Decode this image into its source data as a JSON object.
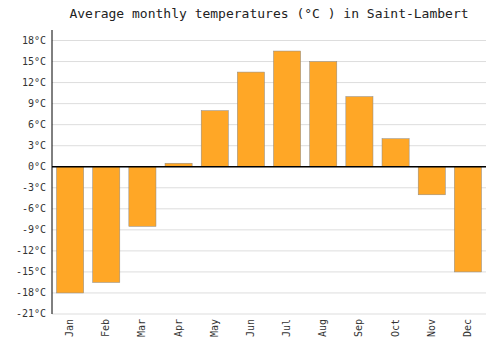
{
  "chart_data": {
    "type": "bar",
    "title": "Average monthly temperatures (°C ) in Saint-Lambert",
    "categories": [
      "Jan",
      "Feb",
      "Mar",
      "Apr",
      "May",
      "Jun",
      "Jul",
      "Aug",
      "Sep",
      "Oct",
      "Nov",
      "Dec"
    ],
    "values": [
      -18.0,
      -16.5,
      -8.5,
      0.5,
      8.0,
      13.5,
      16.5,
      15.0,
      10.0,
      4.0,
      -4.0,
      -15.0
    ],
    "color": "#FFA726",
    "ylim": [
      -21,
      19.5
    ],
    "yticks": [
      {
        "value": -21,
        "label": "-21°C"
      },
      {
        "value": -18,
        "label": "-18°C"
      },
      {
        "value": -15,
        "label": "-15°C"
      },
      {
        "value": -12,
        "label": "-12°C"
      },
      {
        "value": -9,
        "label": "-9°C"
      },
      {
        "value": -6,
        "label": "-6°C"
      },
      {
        "value": -3,
        "label": "-3°C"
      },
      {
        "value": 0,
        "label": "0°C"
      },
      {
        "value": 3,
        "label": "3°C"
      },
      {
        "value": 6,
        "label": "6°C"
      },
      {
        "value": 9,
        "label": "9°C"
      },
      {
        "value": 12,
        "label": "12°C"
      },
      {
        "value": 15,
        "label": "15°C"
      },
      {
        "value": 18,
        "label": "18°C"
      }
    ],
    "grid": true
  }
}
